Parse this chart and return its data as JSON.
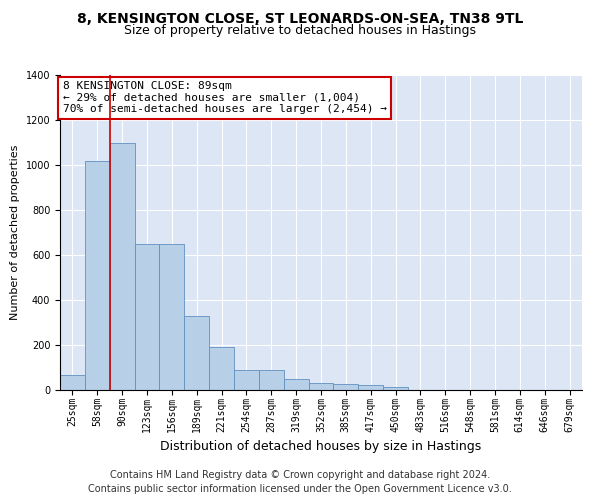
{
  "title1": "8, KENSINGTON CLOSE, ST LEONARDS-ON-SEA, TN38 9TL",
  "title2": "Size of property relative to detached houses in Hastings",
  "xlabel": "Distribution of detached houses by size in Hastings",
  "ylabel": "Number of detached properties",
  "categories": [
    "25sqm",
    "58sqm",
    "90sqm",
    "123sqm",
    "156sqm",
    "189sqm",
    "221sqm",
    "254sqm",
    "287sqm",
    "319sqm",
    "352sqm",
    "385sqm",
    "417sqm",
    "450sqm",
    "483sqm",
    "516sqm",
    "548sqm",
    "581sqm",
    "614sqm",
    "646sqm",
    "679sqm"
  ],
  "values": [
    65,
    1020,
    1100,
    650,
    650,
    330,
    190,
    90,
    90,
    47,
    30,
    25,
    22,
    15,
    0,
    0,
    0,
    0,
    0,
    0,
    0
  ],
  "bar_color": "#b8cfe8",
  "bar_edge_color": "#6090c0",
  "vline_index": 2,
  "vline_color": "#cc0000",
  "annotation_text": "8 KENSINGTON CLOSE: 89sqm\n← 29% of detached houses are smaller (1,004)\n70% of semi-detached houses are larger (2,454) →",
  "annotation_box_color": "#ffffff",
  "annotation_box_edge": "#cc0000",
  "ylim": [
    0,
    1400
  ],
  "yticks": [
    0,
    200,
    400,
    600,
    800,
    1000,
    1200,
    1400
  ],
  "footer1": "Contains HM Land Registry data © Crown copyright and database right 2024.",
  "footer2": "Contains public sector information licensed under the Open Government Licence v3.0.",
  "background_color": "#dce6f5",
  "title1_fontsize": 10,
  "title2_fontsize": 9,
  "xlabel_fontsize": 9,
  "ylabel_fontsize": 8,
  "tick_fontsize": 7,
  "footer_fontsize": 7,
  "annot_fontsize": 8
}
